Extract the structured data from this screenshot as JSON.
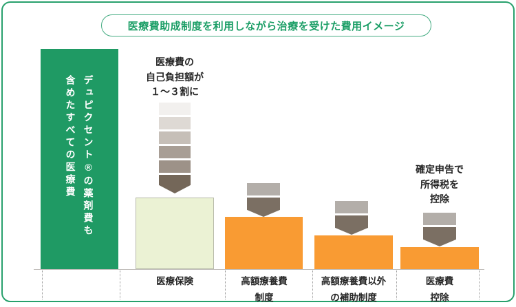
{
  "title": "医療費助成制度を利用しながら治療を受けた費用イメージ",
  "total_bar": {
    "label": "デュピクセント®の薬剤費も\n含めたすべての医療費"
  },
  "annotations": {
    "self_pay": "医療費の\n自己負担額が\n１～３割に",
    "tax_deduction": "確定申告で\n所得税を\n控除"
  },
  "labels": [
    "医療保険",
    "高額療養費\n制度",
    "高額療養費以外\nの補助制度",
    "医療費\n控除"
  ],
  "colors": {
    "frame_border": "#27a06c",
    "title_text": "#1b9e66",
    "title_border": "#43ab81",
    "total_bar": "#1f9a64",
    "insurance_bar_fill": "#ebf2d4",
    "insurance_bar_border": "#b5b8a8",
    "orange_bar": "#f99b33",
    "baseline": "#c2bfbc",
    "separator_dotted": "#999999",
    "text": "#262626"
  },
  "arrow_large_colors": [
    "#f2f0ee",
    "#ded9d4",
    "#c6bfb8",
    "#a89e95",
    "#9d9288",
    "#746759"
  ],
  "arrow_small_colors": [
    "#b3aea9",
    "#7b6f63"
  ],
  "chart_data": {
    "type": "bar",
    "title": "医療費助成制度を利用しながら治療を受けた費用イメージ",
    "categories": [
      "デュピクセント®の薬剤費も含めたすべての医療費",
      "医療保険",
      "高額療養費制度",
      "高額療養費以外の補助制度",
      "医療費控除"
    ],
    "values_relative_height_pct": [
      100,
      33,
      24,
      15,
      10
    ],
    "bar_colors": [
      "#1f9a64",
      "#ebf2d4",
      "#f99b33",
      "#f99b33",
      "#f99b33"
    ],
    "annotations": [
      {
        "target": "医療保険",
        "text": "医療費の自己負担額が１～３割に"
      },
      {
        "target": "医療費控除",
        "text": "確定申告で所得税を控除"
      }
    ],
    "value_axis_labels": "none (conceptual figure, no numeric scale shown)",
    "grid": false,
    "legend": false
  }
}
